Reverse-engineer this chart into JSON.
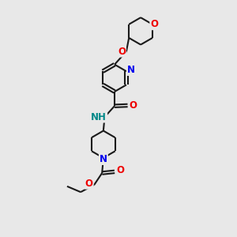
{
  "bg_color": "#e8e8e8",
  "bond_color": "#1a1a1a",
  "N_color": "#0000ee",
  "O_color": "#ee0000",
  "NH_color": "#008888",
  "lw": 1.5,
  "dbg": 0.07,
  "fs": 8.5,
  "xlim": [
    0,
    6
  ],
  "ylim": [
    0,
    9
  ]
}
